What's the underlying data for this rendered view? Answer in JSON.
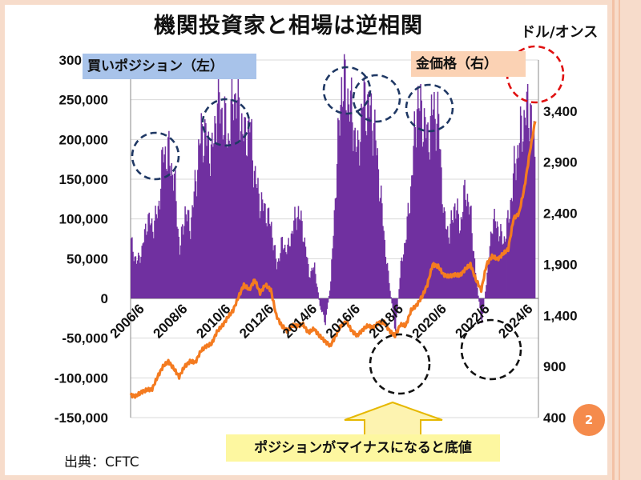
{
  "title": "機関投資家と相場は逆相関",
  "right_unit": "ドル/オンス",
  "source": "出典：CFTC",
  "page_number": "2",
  "legend": {
    "buy_position": "買いポジション（左）",
    "gold_price": "金価格（右）"
  },
  "callout": "ポジションがマイナスになると底値",
  "colors": {
    "position_bars": "#7030a0",
    "gold_line": "#f47b20",
    "blue_circles": "#1f3864",
    "red_circle": "#e01010",
    "black_circles": "#111111",
    "arrow_fill": "#fdf3b0",
    "arrow_stroke": "#e6b800"
  },
  "chart_data": {
    "type": "bar+line",
    "x_tick_labels": [
      "2006/6",
      "2008/6",
      "2010/6",
      "2012/6",
      "2014/6",
      "2016/6",
      "2018/6",
      "2020/6",
      "2022/6",
      "2024/6"
    ],
    "left_axis": {
      "ylim": [
        -150000,
        300000
      ],
      "ticks": [
        "-150,000",
        "-100,000",
        "-50,000",
        "0",
        "50,000",
        "100,000",
        "150,000",
        "200,000",
        "250,000",
        "300,000"
      ]
    },
    "right_axis": {
      "ylim": [
        400,
        3900
      ],
      "ticks": [
        "400",
        "900",
        "1,400",
        "1,900",
        "2,400",
        "2,900",
        "3,400"
      ]
    },
    "series": [
      {
        "name": "買いポジション（左）",
        "axis": "left",
        "kind": "bar",
        "x": [
          2006.5,
          2006.75,
          2007.0,
          2007.25,
          2007.5,
          2007.75,
          2008.0,
          2008.25,
          2008.5,
          2008.75,
          2009.0,
          2009.25,
          2009.5,
          2009.75,
          2010.0,
          2010.25,
          2010.5,
          2010.75,
          2011.0,
          2011.25,
          2011.5,
          2011.75,
          2012.0,
          2012.25,
          2012.5,
          2012.75,
          2013.0,
          2013.25,
          2013.5,
          2013.75,
          2014.0,
          2014.25,
          2014.5,
          2014.75,
          2015.0,
          2015.25,
          2015.5,
          2015.75,
          2016.0,
          2016.25,
          2016.5,
          2016.75,
          2017.0,
          2017.25,
          2017.5,
          2017.75,
          2018.0,
          2018.25,
          2018.5,
          2018.75,
          2019.0,
          2019.25,
          2019.5,
          2019.75,
          2020.0,
          2020.25,
          2020.5,
          2020.75,
          2021.0,
          2021.25,
          2021.5,
          2021.75,
          2022.0,
          2022.25,
          2022.5,
          2022.75,
          2023.0,
          2023.25,
          2023.5,
          2023.75,
          2024.0,
          2024.25,
          2024.5,
          2024.75,
          2025.0,
          2025.25
        ],
        "values": [
          70000,
          45000,
          60000,
          100000,
          90000,
          110000,
          185000,
          180000,
          150000,
          60000,
          110000,
          90000,
          150000,
          210000,
          200000,
          180000,
          250000,
          230000,
          200000,
          260000,
          240000,
          200000,
          220000,
          150000,
          120000,
          110000,
          90000,
          40000,
          70000,
          60000,
          90000,
          110000,
          80000,
          30000,
          40000,
          -10000,
          -30000,
          20000,
          150000,
          270000,
          260000,
          230000,
          180000,
          250000,
          240000,
          220000,
          150000,
          70000,
          10000,
          -40000,
          40000,
          80000,
          150000,
          250000,
          230000,
          200000,
          240000,
          220000,
          100000,
          80000,
          120000,
          90000,
          140000,
          100000,
          20000,
          -30000,
          30000,
          100000,
          90000,
          70000,
          100000,
          160000,
          200000,
          230000,
          240000,
          170000
        ]
      },
      {
        "name": "金価格（右）",
        "axis": "right",
        "kind": "line",
        "x": [
          2006.5,
          2006.75,
          2007.0,
          2007.25,
          2007.5,
          2007.75,
          2008.0,
          2008.25,
          2008.5,
          2008.75,
          2009.0,
          2009.25,
          2009.5,
          2009.75,
          2010.0,
          2010.25,
          2010.5,
          2010.75,
          2011.0,
          2011.25,
          2011.5,
          2011.75,
          2012.0,
          2012.25,
          2012.5,
          2012.75,
          2013.0,
          2013.25,
          2013.5,
          2013.75,
          2014.0,
          2014.25,
          2014.5,
          2014.75,
          2015.0,
          2015.25,
          2015.5,
          2015.75,
          2016.0,
          2016.25,
          2016.5,
          2016.75,
          2017.0,
          2017.25,
          2017.5,
          2017.75,
          2018.0,
          2018.25,
          2018.5,
          2018.75,
          2019.0,
          2019.25,
          2019.5,
          2019.75,
          2020.0,
          2020.25,
          2020.5,
          2020.75,
          2021.0,
          2021.25,
          2021.5,
          2021.75,
          2022.0,
          2022.25,
          2022.5,
          2022.75,
          2023.0,
          2023.25,
          2023.5,
          2023.75,
          2024.0,
          2024.25,
          2024.5,
          2024.75,
          2025.0,
          2025.25
        ],
        "values": [
          620,
          610,
          650,
          670,
          680,
          800,
          900,
          950,
          880,
          800,
          900,
          950,
          940,
          1050,
          1100,
          1120,
          1240,
          1300,
          1380,
          1450,
          1580,
          1700,
          1650,
          1750,
          1620,
          1700,
          1650,
          1400,
          1300,
          1250,
          1300,
          1300,
          1310,
          1230,
          1270,
          1200,
          1150,
          1100,
          1200,
          1300,
          1340,
          1250,
          1200,
          1260,
          1300,
          1280,
          1330,
          1330,
          1250,
          1200,
          1310,
          1300,
          1450,
          1500,
          1580,
          1700,
          1900,
          1880,
          1800,
          1780,
          1800,
          1790,
          1850,
          1900,
          1750,
          1650,
          1900,
          1980,
          1950,
          2000,
          2050,
          2350,
          2400,
          2650,
          3000,
          3300
        ]
      }
    ]
  }
}
